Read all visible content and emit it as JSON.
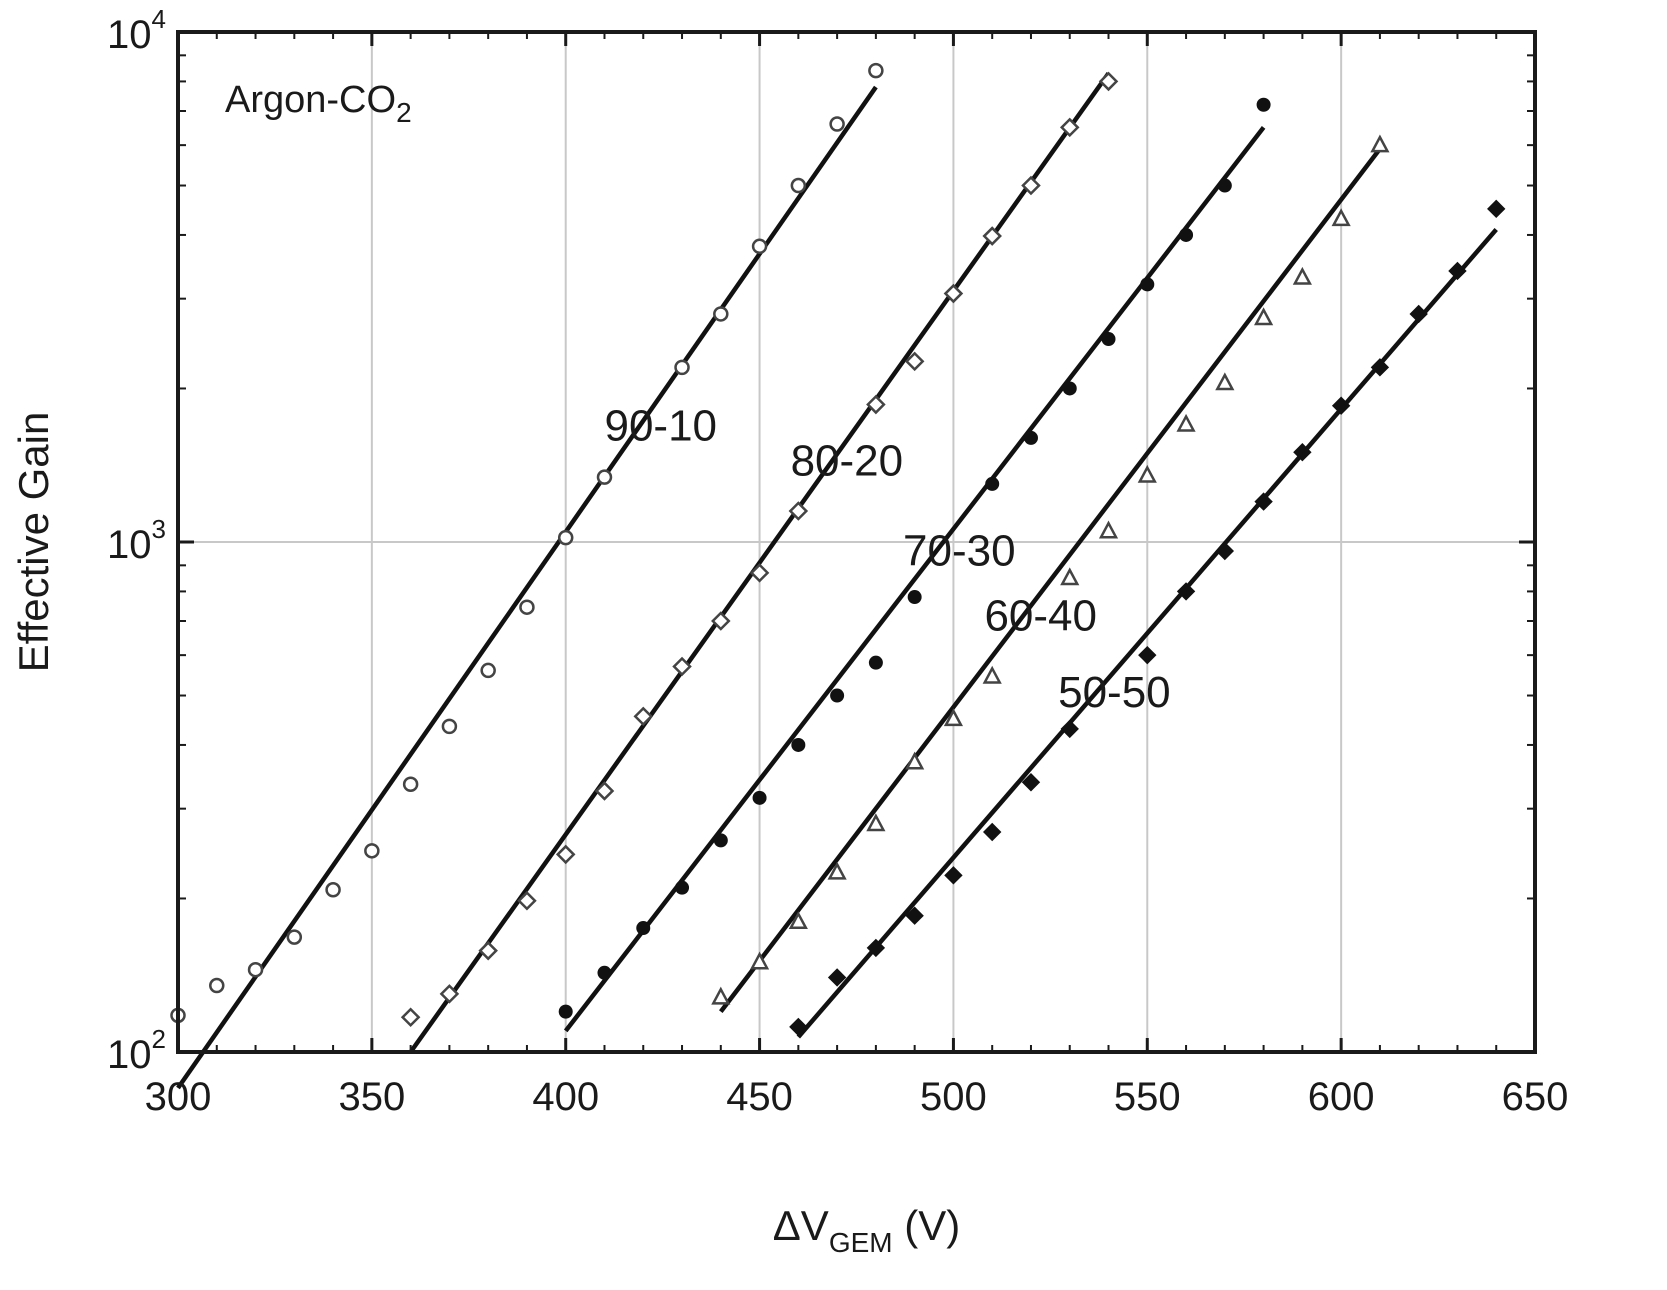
{
  "chart_data": {
    "type": "scatter",
    "title": "",
    "annotation": {
      "main": "Argon-CO",
      "sub": "2"
    },
    "xlabel": {
      "main": "ΔV",
      "sub": "GEM",
      "unit": " (V)"
    },
    "ylabel": "Effective  Gain",
    "xlim": [
      300,
      650
    ],
    "ylim": [
      100,
      10000
    ],
    "yscale": "log",
    "x_ticks": [
      300,
      350,
      400,
      450,
      500,
      550,
      600,
      650
    ],
    "y_ticks": [
      {
        "value": 100,
        "base": "10",
        "exp": "2"
      },
      {
        "value": 1000,
        "base": "10",
        "exp": "3"
      },
      {
        "value": 10000,
        "base": "10",
        "exp": "4"
      }
    ],
    "grid": true,
    "series": [
      {
        "name": "90-10",
        "marker": "circle-open",
        "points": [
          [
            300,
            118
          ],
          [
            310,
            135
          ],
          [
            320,
            145
          ],
          [
            330,
            168
          ],
          [
            340,
            208
          ],
          [
            350,
            248
          ],
          [
            360,
            335
          ],
          [
            370,
            435
          ],
          [
            380,
            560
          ],
          [
            390,
            745
          ],
          [
            400,
            1020
          ],
          [
            410,
            1340
          ],
          [
            430,
            2200
          ],
          [
            440,
            2800
          ],
          [
            450,
            3800
          ],
          [
            460,
            5000
          ],
          [
            470,
            6600
          ],
          [
            480,
            8400
          ]
        ],
        "fit": [
          [
            300,
            85
          ],
          [
            480,
            7800
          ]
        ],
        "label": {
          "x": 410,
          "y": 1580
        }
      },
      {
        "name": "80-20",
        "marker": "diamond-open",
        "points": [
          [
            360,
            117
          ],
          [
            370,
            130
          ],
          [
            380,
            158
          ],
          [
            390,
            198
          ],
          [
            400,
            244
          ],
          [
            410,
            325
          ],
          [
            420,
            455
          ],
          [
            430,
            570
          ],
          [
            440,
            700
          ],
          [
            450,
            870
          ],
          [
            460,
            1150
          ],
          [
            480,
            1860
          ],
          [
            490,
            2260
          ],
          [
            500,
            3070
          ],
          [
            510,
            3980
          ],
          [
            520,
            5000
          ],
          [
            530,
            6500
          ],
          [
            540,
            8000
          ]
        ],
        "fit": [
          [
            360,
            100
          ],
          [
            540,
            8300
          ]
        ],
        "label": {
          "x": 458,
          "y": 1350
        }
      },
      {
        "name": "70-30",
        "marker": "circle-filled",
        "points": [
          [
            400,
            120
          ],
          [
            410,
            143
          ],
          [
            420,
            175
          ],
          [
            430,
            210
          ],
          [
            440,
            260
          ],
          [
            450,
            315
          ],
          [
            460,
            400
          ],
          [
            470,
            500
          ],
          [
            480,
            580
          ],
          [
            490,
            780
          ],
          [
            510,
            1300
          ],
          [
            520,
            1600
          ],
          [
            530,
            2000
          ],
          [
            540,
            2500
          ],
          [
            550,
            3200
          ],
          [
            560,
            4000
          ],
          [
            570,
            5000
          ],
          [
            580,
            7200
          ]
        ],
        "fit": [
          [
            400,
            110
          ],
          [
            580,
            6500
          ]
        ],
        "label": {
          "x": 487,
          "y": 900
        }
      },
      {
        "name": "60-40",
        "marker": "triangle-open",
        "points": [
          [
            440,
            128
          ],
          [
            450,
            150
          ],
          [
            460,
            180
          ],
          [
            470,
            225
          ],
          [
            480,
            280
          ],
          [
            490,
            370
          ],
          [
            500,
            450
          ],
          [
            510,
            545
          ],
          [
            530,
            850
          ],
          [
            540,
            1050
          ],
          [
            550,
            1350
          ],
          [
            560,
            1700
          ],
          [
            570,
            2050
          ],
          [
            580,
            2750
          ],
          [
            590,
            3300
          ],
          [
            600,
            4300
          ],
          [
            610,
            6000
          ]
        ],
        "fit": [
          [
            440,
            120
          ],
          [
            610,
            5900
          ]
        ],
        "label": {
          "x": 508,
          "y": 670
        }
      },
      {
        "name": "50-50",
        "marker": "square-filled",
        "points": [
          [
            460,
            112
          ],
          [
            470,
            140
          ],
          [
            480,
            160
          ],
          [
            490,
            185
          ],
          [
            500,
            222
          ],
          [
            510,
            270
          ],
          [
            520,
            338
          ],
          [
            530,
            430
          ],
          [
            550,
            600
          ],
          [
            560,
            800
          ],
          [
            570,
            960
          ],
          [
            580,
            1200
          ],
          [
            590,
            1500
          ],
          [
            600,
            1850
          ],
          [
            610,
            2200
          ],
          [
            620,
            2800
          ],
          [
            630,
            3400
          ],
          [
            640,
            4500
          ]
        ],
        "fit": [
          [
            460,
            107
          ],
          [
            640,
            4100
          ]
        ],
        "label": {
          "x": 527,
          "y": 475
        }
      }
    ]
  }
}
